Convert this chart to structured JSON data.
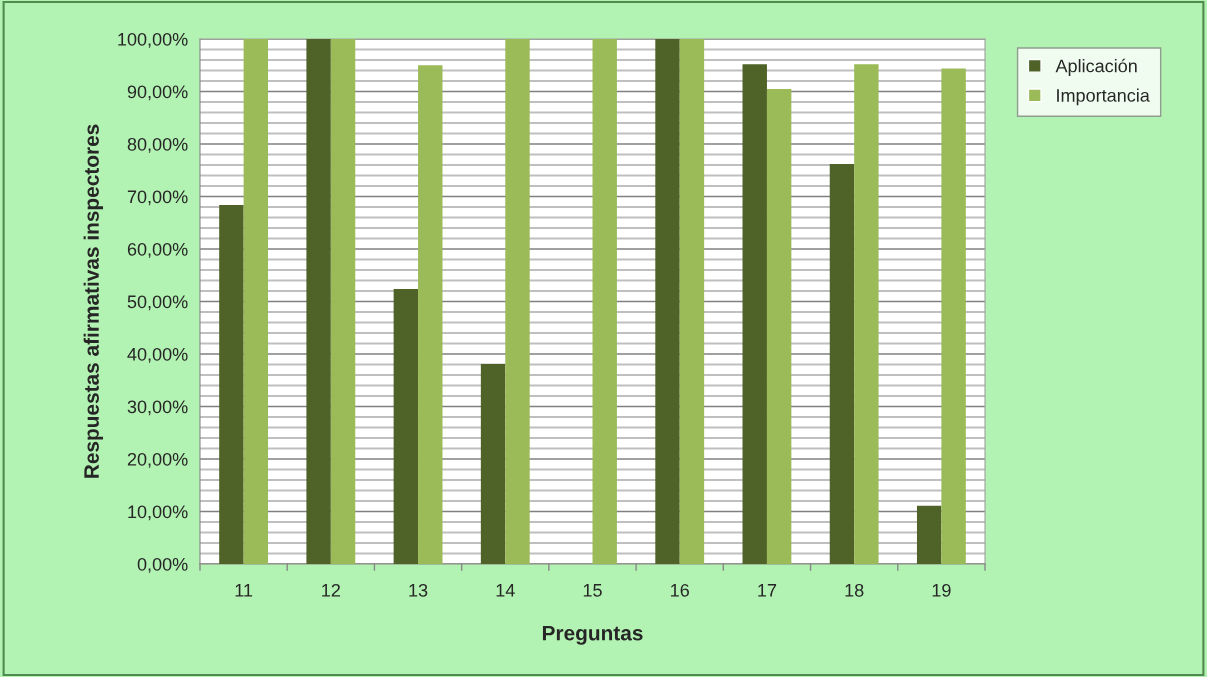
{
  "chart_data": {
    "type": "bar",
    "xlabel": "Preguntas",
    "ylabel": "Respuestas afirmativas inspectores",
    "categories": [
      "11",
      "12",
      "13",
      "14",
      "15",
      "16",
      "17",
      "18",
      "19"
    ],
    "series": [
      {
        "name": "Aplicación",
        "color": "#4f6228",
        "values": [
          68.4,
          100,
          52.4,
          38.1,
          0,
          100,
          95.2,
          76.2,
          11.1
        ]
      },
      {
        "name": "Importancia",
        "color": "#9bbb59",
        "values": [
          100,
          100,
          95,
          100,
          100,
          100,
          90.5,
          95.2,
          94.4
        ]
      }
    ],
    "ylim": [
      0,
      100
    ],
    "yticks": [
      {
        "value": 0,
        "label": "0,00%"
      },
      {
        "value": 2,
        "label": null
      },
      {
        "value": 4,
        "label": null
      },
      {
        "value": 6,
        "label": null
      },
      {
        "value": 8,
        "label": null
      },
      {
        "value": 10,
        "label": "10,00%"
      },
      {
        "value": 12,
        "label": null
      },
      {
        "value": 14,
        "label": null
      },
      {
        "value": 16,
        "label": null
      },
      {
        "value": 18,
        "label": null
      },
      {
        "value": 20,
        "label": "20,00%"
      },
      {
        "value": 22,
        "label": null
      },
      {
        "value": 24,
        "label": null
      },
      {
        "value": 26,
        "label": null
      },
      {
        "value": 28,
        "label": null
      },
      {
        "value": 30,
        "label": "30,00%"
      },
      {
        "value": 32,
        "label": null
      },
      {
        "value": 34,
        "label": null
      },
      {
        "value": 36,
        "label": null
      },
      {
        "value": 38,
        "label": null
      },
      {
        "value": 40,
        "label": "40,00%"
      },
      {
        "value": 42,
        "label": null
      },
      {
        "value": 44,
        "label": null
      },
      {
        "value": 46,
        "label": null
      },
      {
        "value": 48,
        "label": null
      },
      {
        "value": 50,
        "label": "50,00%"
      },
      {
        "value": 52,
        "label": null
      },
      {
        "value": 54,
        "label": null
      },
      {
        "value": 56,
        "label": null
      },
      {
        "value": 58,
        "label": null
      },
      {
        "value": 60,
        "label": "60,00%"
      },
      {
        "value": 62,
        "label": null
      },
      {
        "value": 64,
        "label": null
      },
      {
        "value": 66,
        "label": null
      },
      {
        "value": 68,
        "label": null
      },
      {
        "value": 70,
        "label": "70,00%"
      },
      {
        "value": 72,
        "label": null
      },
      {
        "value": 74,
        "label": null
      },
      {
        "value": 76,
        "label": null
      },
      {
        "value": 78,
        "label": null
      },
      {
        "value": 80,
        "label": "80,00%"
      },
      {
        "value": 82,
        "label": null
      },
      {
        "value": 84,
        "label": null
      },
      {
        "value": 86,
        "label": null
      },
      {
        "value": 88,
        "label": null
      },
      {
        "value": 90,
        "label": "90,00%"
      },
      {
        "value": 92,
        "label": null
      },
      {
        "value": 94,
        "label": null
      },
      {
        "value": 96,
        "label": null
      },
      {
        "value": 98,
        "label": null
      },
      {
        "value": 100,
        "label": "100,00%"
      }
    ],
    "grid": "y",
    "legend": "top right"
  }
}
